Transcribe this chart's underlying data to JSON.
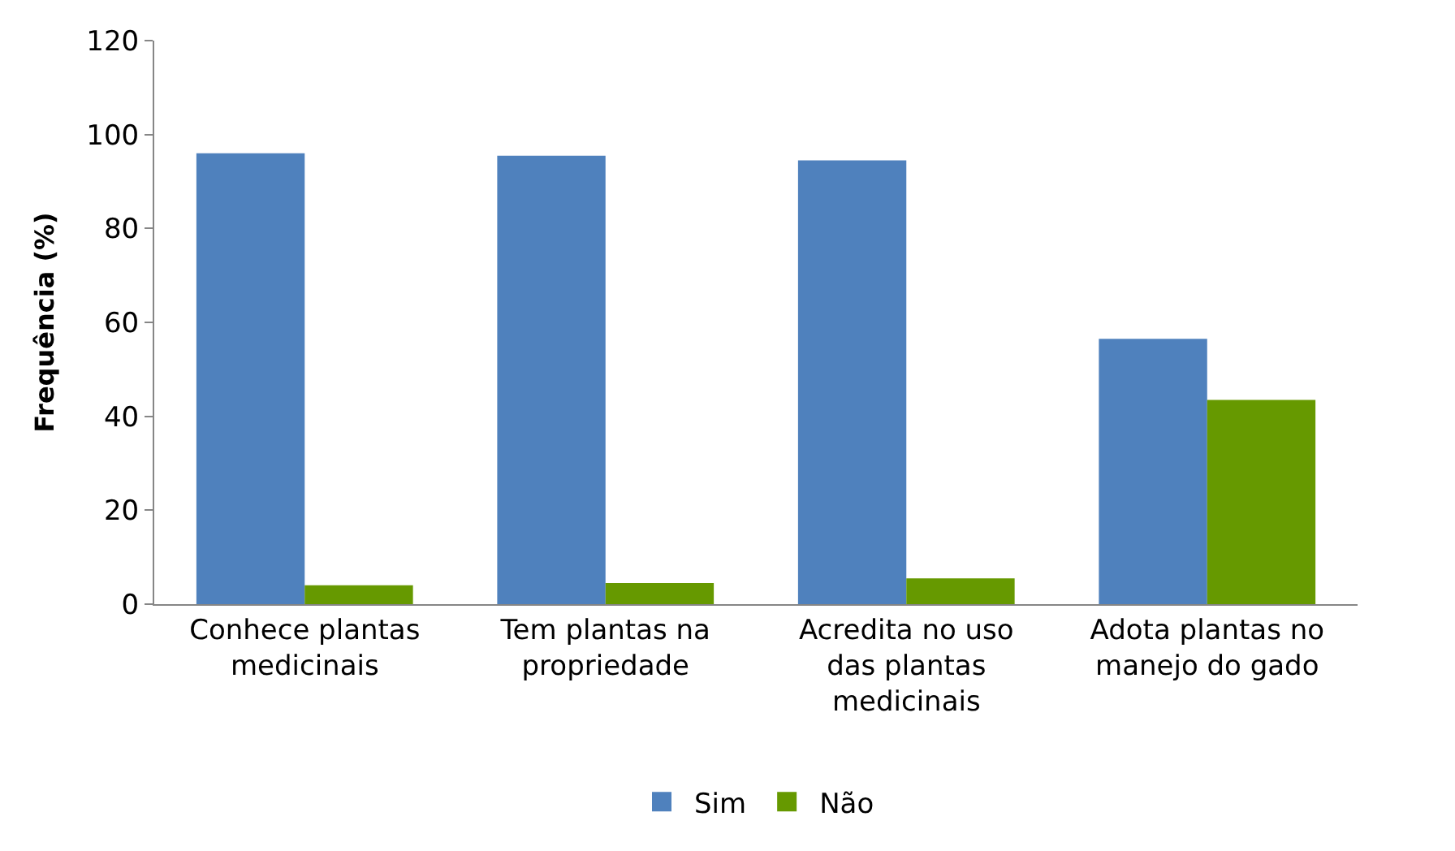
{
  "chart_data": {
    "type": "bar",
    "ylabel": "Frequência (%)",
    "categories": [
      "Conhece plantas medicinais",
      "Tem plantas na propriedade",
      "Acredita no uso das plantas medicinais",
      "Adota plantas no manejo do gado"
    ],
    "series": [
      {
        "name": "Sim",
        "color": "#4f81bd",
        "values": [
          96,
          95.5,
          94.5,
          56.5
        ]
      },
      {
        "name": "Não",
        "color": "#669900",
        "values": [
          4,
          4.5,
          5.5,
          43.5
        ]
      }
    ],
    "ylim": [
      0,
      120
    ],
    "yticks": [
      0,
      20,
      40,
      60,
      80,
      100,
      120
    ],
    "legend": "bottom"
  }
}
